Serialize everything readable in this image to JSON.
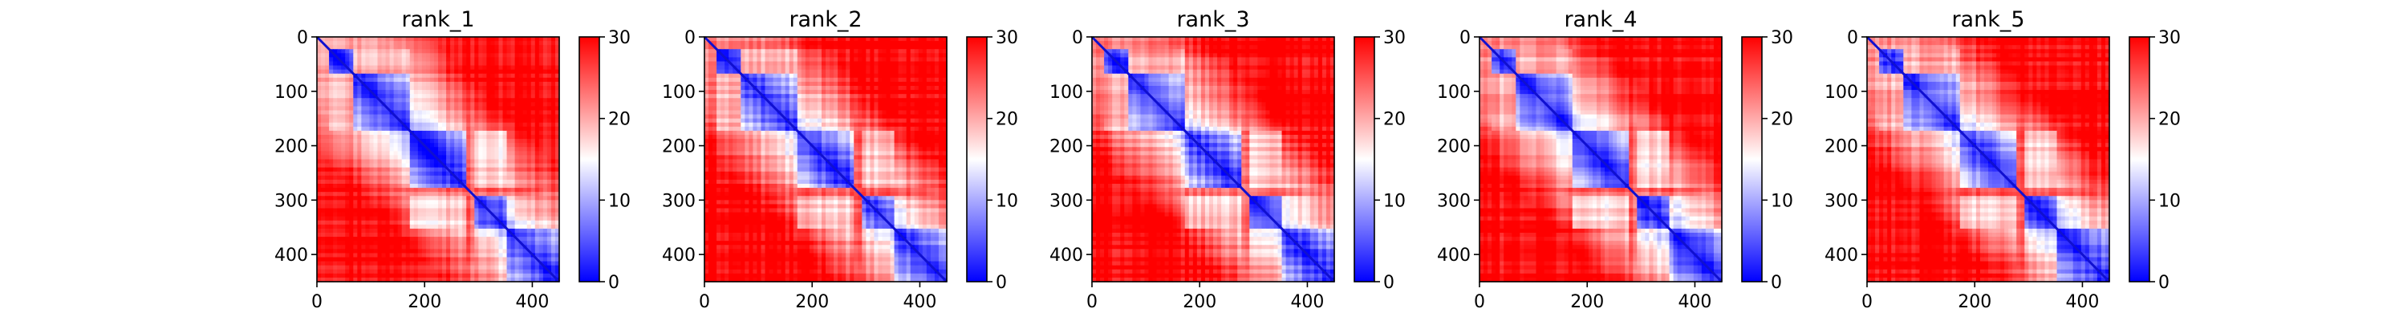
{
  "chart_data": {
    "type": "heatmap",
    "colormap": {
      "name": "bwr",
      "low": "#0000ff",
      "mid": "#ffffff",
      "high": "#ff0000"
    },
    "value_range": [
      0,
      30
    ],
    "colorbar_ticks": [
      0,
      10,
      20,
      30
    ],
    "x_ticks": [
      0,
      200,
      400
    ],
    "y_ticks": [
      0,
      100,
      200,
      300,
      400
    ],
    "xlim": [
      0,
      450
    ],
    "ylim": [
      450,
      0
    ],
    "matrix_size": 450,
    "domain_boundaries": [
      20,
      70,
      175,
      290,
      350,
      450
    ],
    "panels": [
      {
        "title": "rank_1"
      },
      {
        "title": "rank_2"
      },
      {
        "title": "rank_3"
      },
      {
        "title": "rank_4"
      },
      {
        "title": "rank_5"
      }
    ]
  }
}
